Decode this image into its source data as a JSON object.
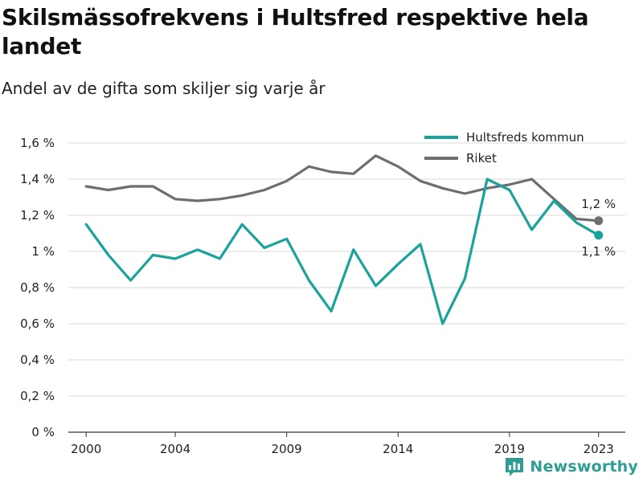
{
  "title": "Skilsmässofrekvens i Hultsfred respektive hela landet",
  "subtitle": "Andel av de gifta som skiljer sig varje år",
  "brand": {
    "name": "Newsworthy",
    "color": "#2e9e95"
  },
  "chart_data": {
    "type": "line",
    "title": "Skilsmässofrekvens i Hultsfred respektive hela landet",
    "subtitle": "Andel av de gifta som skiljer sig varje år",
    "xlabel": "",
    "ylabel": "",
    "x": [
      2000,
      2001,
      2002,
      2003,
      2004,
      2005,
      2006,
      2007,
      2008,
      2009,
      2010,
      2011,
      2012,
      2013,
      2014,
      2015,
      2016,
      2017,
      2018,
      2019,
      2020,
      2021,
      2022,
      2023
    ],
    "xlim": [
      1999.2,
      2024.2
    ],
    "x_ticks": [
      2000,
      2004,
      2009,
      2014,
      2019,
      2023
    ],
    "ylim": [
      0,
      1.6
    ],
    "y_ticks": [
      0,
      0.2,
      0.4,
      0.6,
      0.8,
      1.0,
      1.2,
      1.4,
      1.6
    ],
    "y_tick_labels": [
      "0 %",
      "0,2 %",
      "0,4 %",
      "0,6 %",
      "0,8 %",
      "1 %",
      "1,2 %",
      "1,4 %",
      "1,6 %"
    ],
    "grid": "horizontal",
    "legend_position": "top-right",
    "series": [
      {
        "name": "Hultsfreds kommun",
        "color": "#1aa39a",
        "values": [
          1.15,
          0.98,
          0.84,
          0.98,
          0.96,
          1.01,
          0.96,
          1.15,
          1.02,
          1.07,
          0.84,
          0.67,
          1.01,
          0.81,
          0.93,
          1.04,
          0.6,
          0.85,
          1.4,
          1.34,
          1.12,
          1.28,
          1.16,
          1.09
        ],
        "end_label": "1,1 %"
      },
      {
        "name": "Riket",
        "color": "#6e6d72",
        "values": [
          1.36,
          1.34,
          1.36,
          1.36,
          1.29,
          1.28,
          1.29,
          1.31,
          1.34,
          1.39,
          1.47,
          1.44,
          1.43,
          1.53,
          1.47,
          1.39,
          1.35,
          1.32,
          1.35,
          1.37,
          1.4,
          1.29,
          1.18,
          1.17
        ],
        "end_label": "1,2 %"
      }
    ]
  }
}
